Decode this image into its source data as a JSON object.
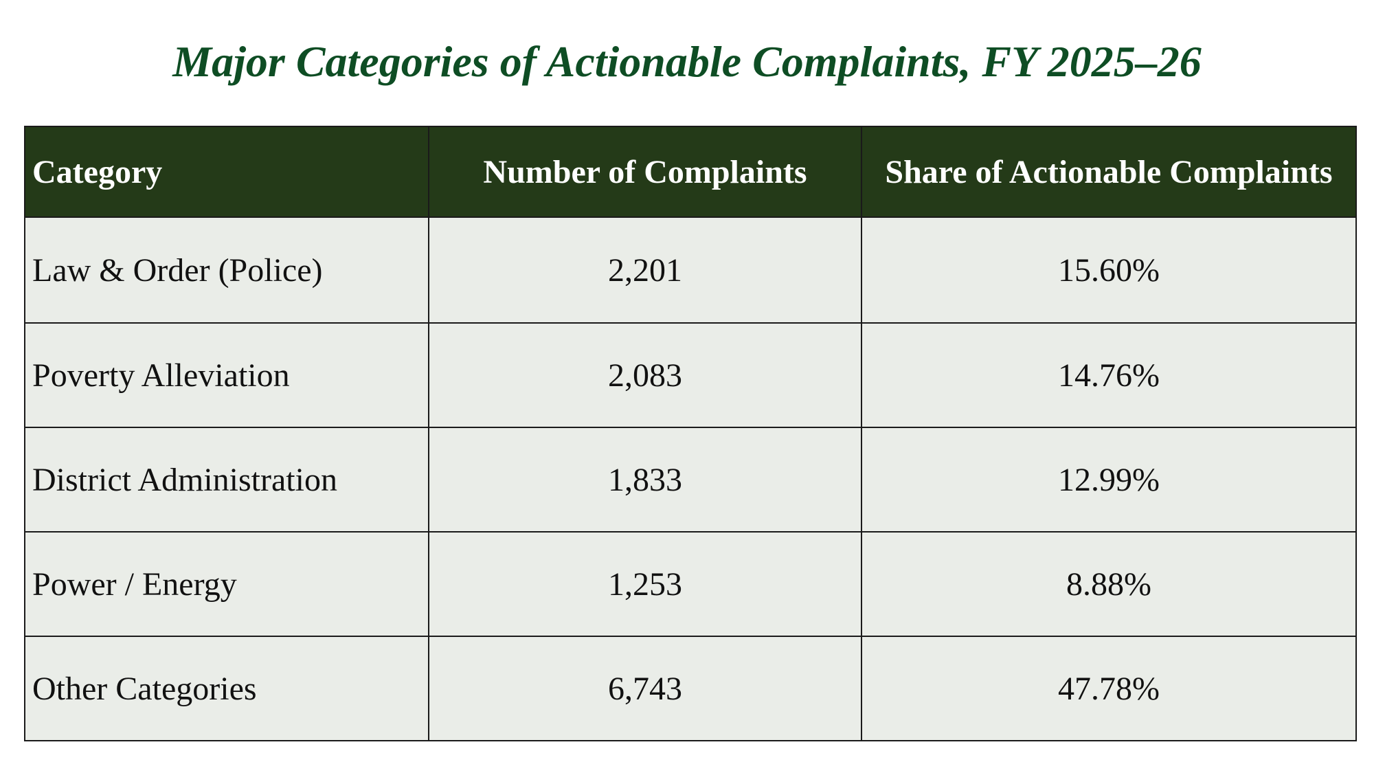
{
  "page": {
    "title": "Major Categories of Actionable Complaints, FY 2025–26"
  },
  "colors": {
    "title": "#0e4d24",
    "header_bg": "#243a18",
    "header_text": "#ffffff",
    "row_bg": "#eaede8",
    "border": "#1a1a1a"
  },
  "table": {
    "headers": [
      "Category",
      "Number of Complaints",
      "Share of Actionable Complaints"
    ],
    "rows": [
      [
        "Law & Order (Police)",
        "2,201",
        "15.60%"
      ],
      [
        "Poverty Alleviation",
        "2,083",
        "14.76%"
      ],
      [
        "District Administration",
        "1,833",
        "12.99%"
      ],
      [
        "Power / Energy",
        "1,253",
        "8.88%"
      ],
      [
        "Other Categories",
        "6,743",
        "47.78%"
      ]
    ]
  }
}
